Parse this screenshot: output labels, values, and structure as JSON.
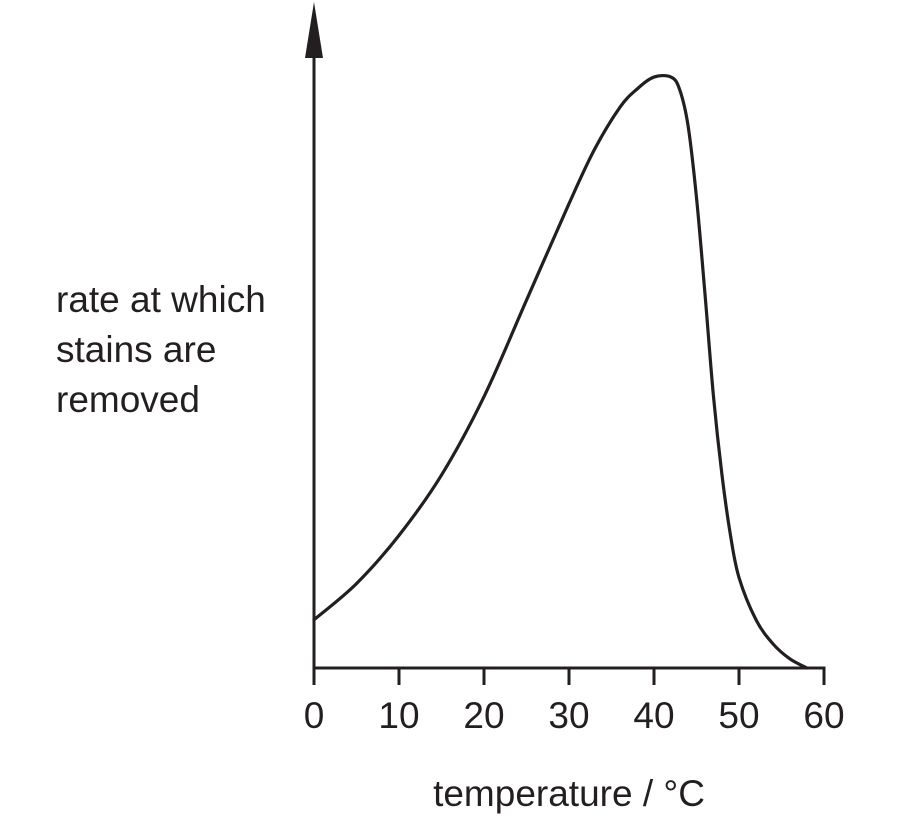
{
  "chart_data": {
    "type": "line",
    "title": "",
    "xlabel": "temperature / °C",
    "ylabel_lines": [
      "rate at which",
      "stains are",
      "removed"
    ],
    "xlim": [
      0,
      60
    ],
    "ylim": [
      0,
      100
    ],
    "x_ticks": [
      0,
      10,
      20,
      30,
      40,
      50,
      60
    ],
    "grid": false,
    "y_axis_ticks": false,
    "series": [
      {
        "x": [
          0,
          5,
          10,
          15,
          20,
          25,
          30,
          33,
          36,
          38,
          40,
          42,
          43,
          44,
          45,
          46,
          47,
          48,
          49,
          50,
          52,
          54,
          56,
          58
        ],
        "y": [
          8,
          14,
          22,
          32,
          45,
          61,
          77,
          86,
          93,
          96,
          98,
          98,
          96,
          90,
          78,
          62,
          45,
          32,
          22,
          15,
          8,
          4,
          1.5,
          0
        ]
      }
    ],
    "colors": {
      "line": "#231f20",
      "axis": "#231f20",
      "background": "#ffffff"
    }
  }
}
